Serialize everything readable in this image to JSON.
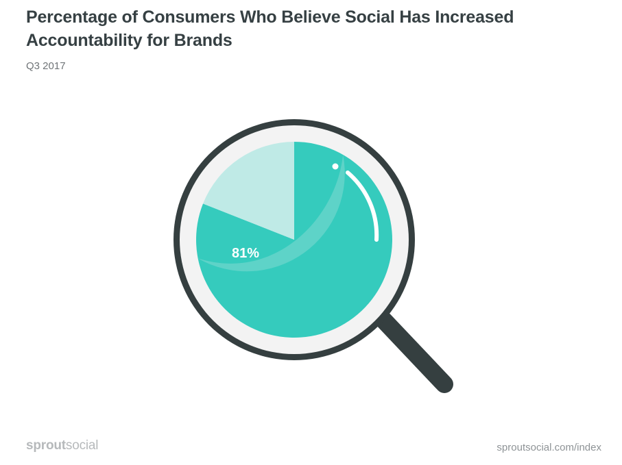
{
  "title": "Percentage of Consumers Who Believe Social Has Increased Accountability for Brands",
  "subtitle": "Q3 2017",
  "footer": {
    "brand_strong": "sprout",
    "brand_light": "social",
    "url": "sproutsocial.com/index"
  },
  "colors": {
    "slice_main": "#35cbbd",
    "slice_rest": "#bfeae6",
    "lens_shade": "#5ed3c8",
    "frame": "#353f40",
    "glass": "#f3f3f3"
  },
  "chart_data": {
    "type": "pie",
    "title": "Percentage of Consumers Who Believe Social Has Increased Accountability for Brands",
    "subtitle": "Q3 2017",
    "slices": [
      {
        "value": 81,
        "label": "81%"
      },
      {
        "value": 19,
        "label": ""
      }
    ]
  }
}
